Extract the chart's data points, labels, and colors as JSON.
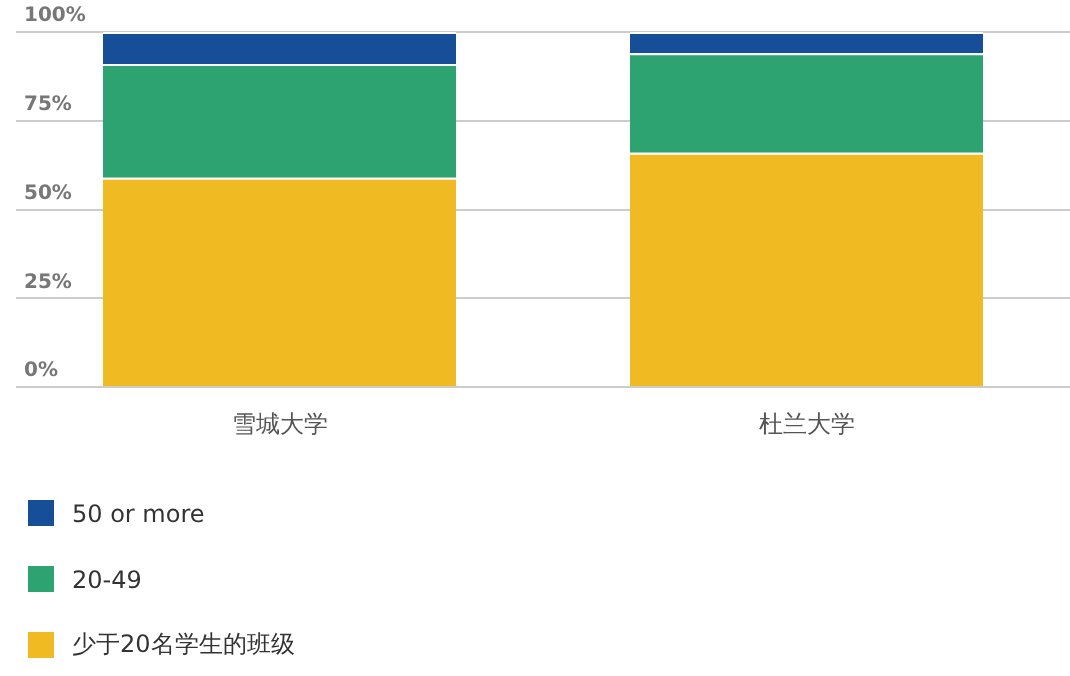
{
  "chart_data": {
    "type": "bar",
    "stacked": true,
    "categories": [
      "雪城大学",
      "杜兰大学"
    ],
    "series": [
      {
        "name": "少于20名学生的班级",
        "color": "#efba22",
        "values": [
          59,
          66
        ]
      },
      {
        "name": "20-49",
        "color": "#2ea372",
        "values": [
          32,
          28
        ]
      },
      {
        "name": "50 or more",
        "color": "#164e98",
        "values": [
          9,
          6
        ]
      }
    ],
    "ylim": [
      0,
      100
    ],
    "yticks": [
      {
        "value": 0,
        "label": "0%"
      },
      {
        "value": 25,
        "label": "25%"
      },
      {
        "value": 50,
        "label": "50%"
      },
      {
        "value": 75,
        "label": "75%"
      },
      {
        "value": 100,
        "label": "100%"
      }
    ],
    "grid": "y",
    "legend": "bottom"
  }
}
